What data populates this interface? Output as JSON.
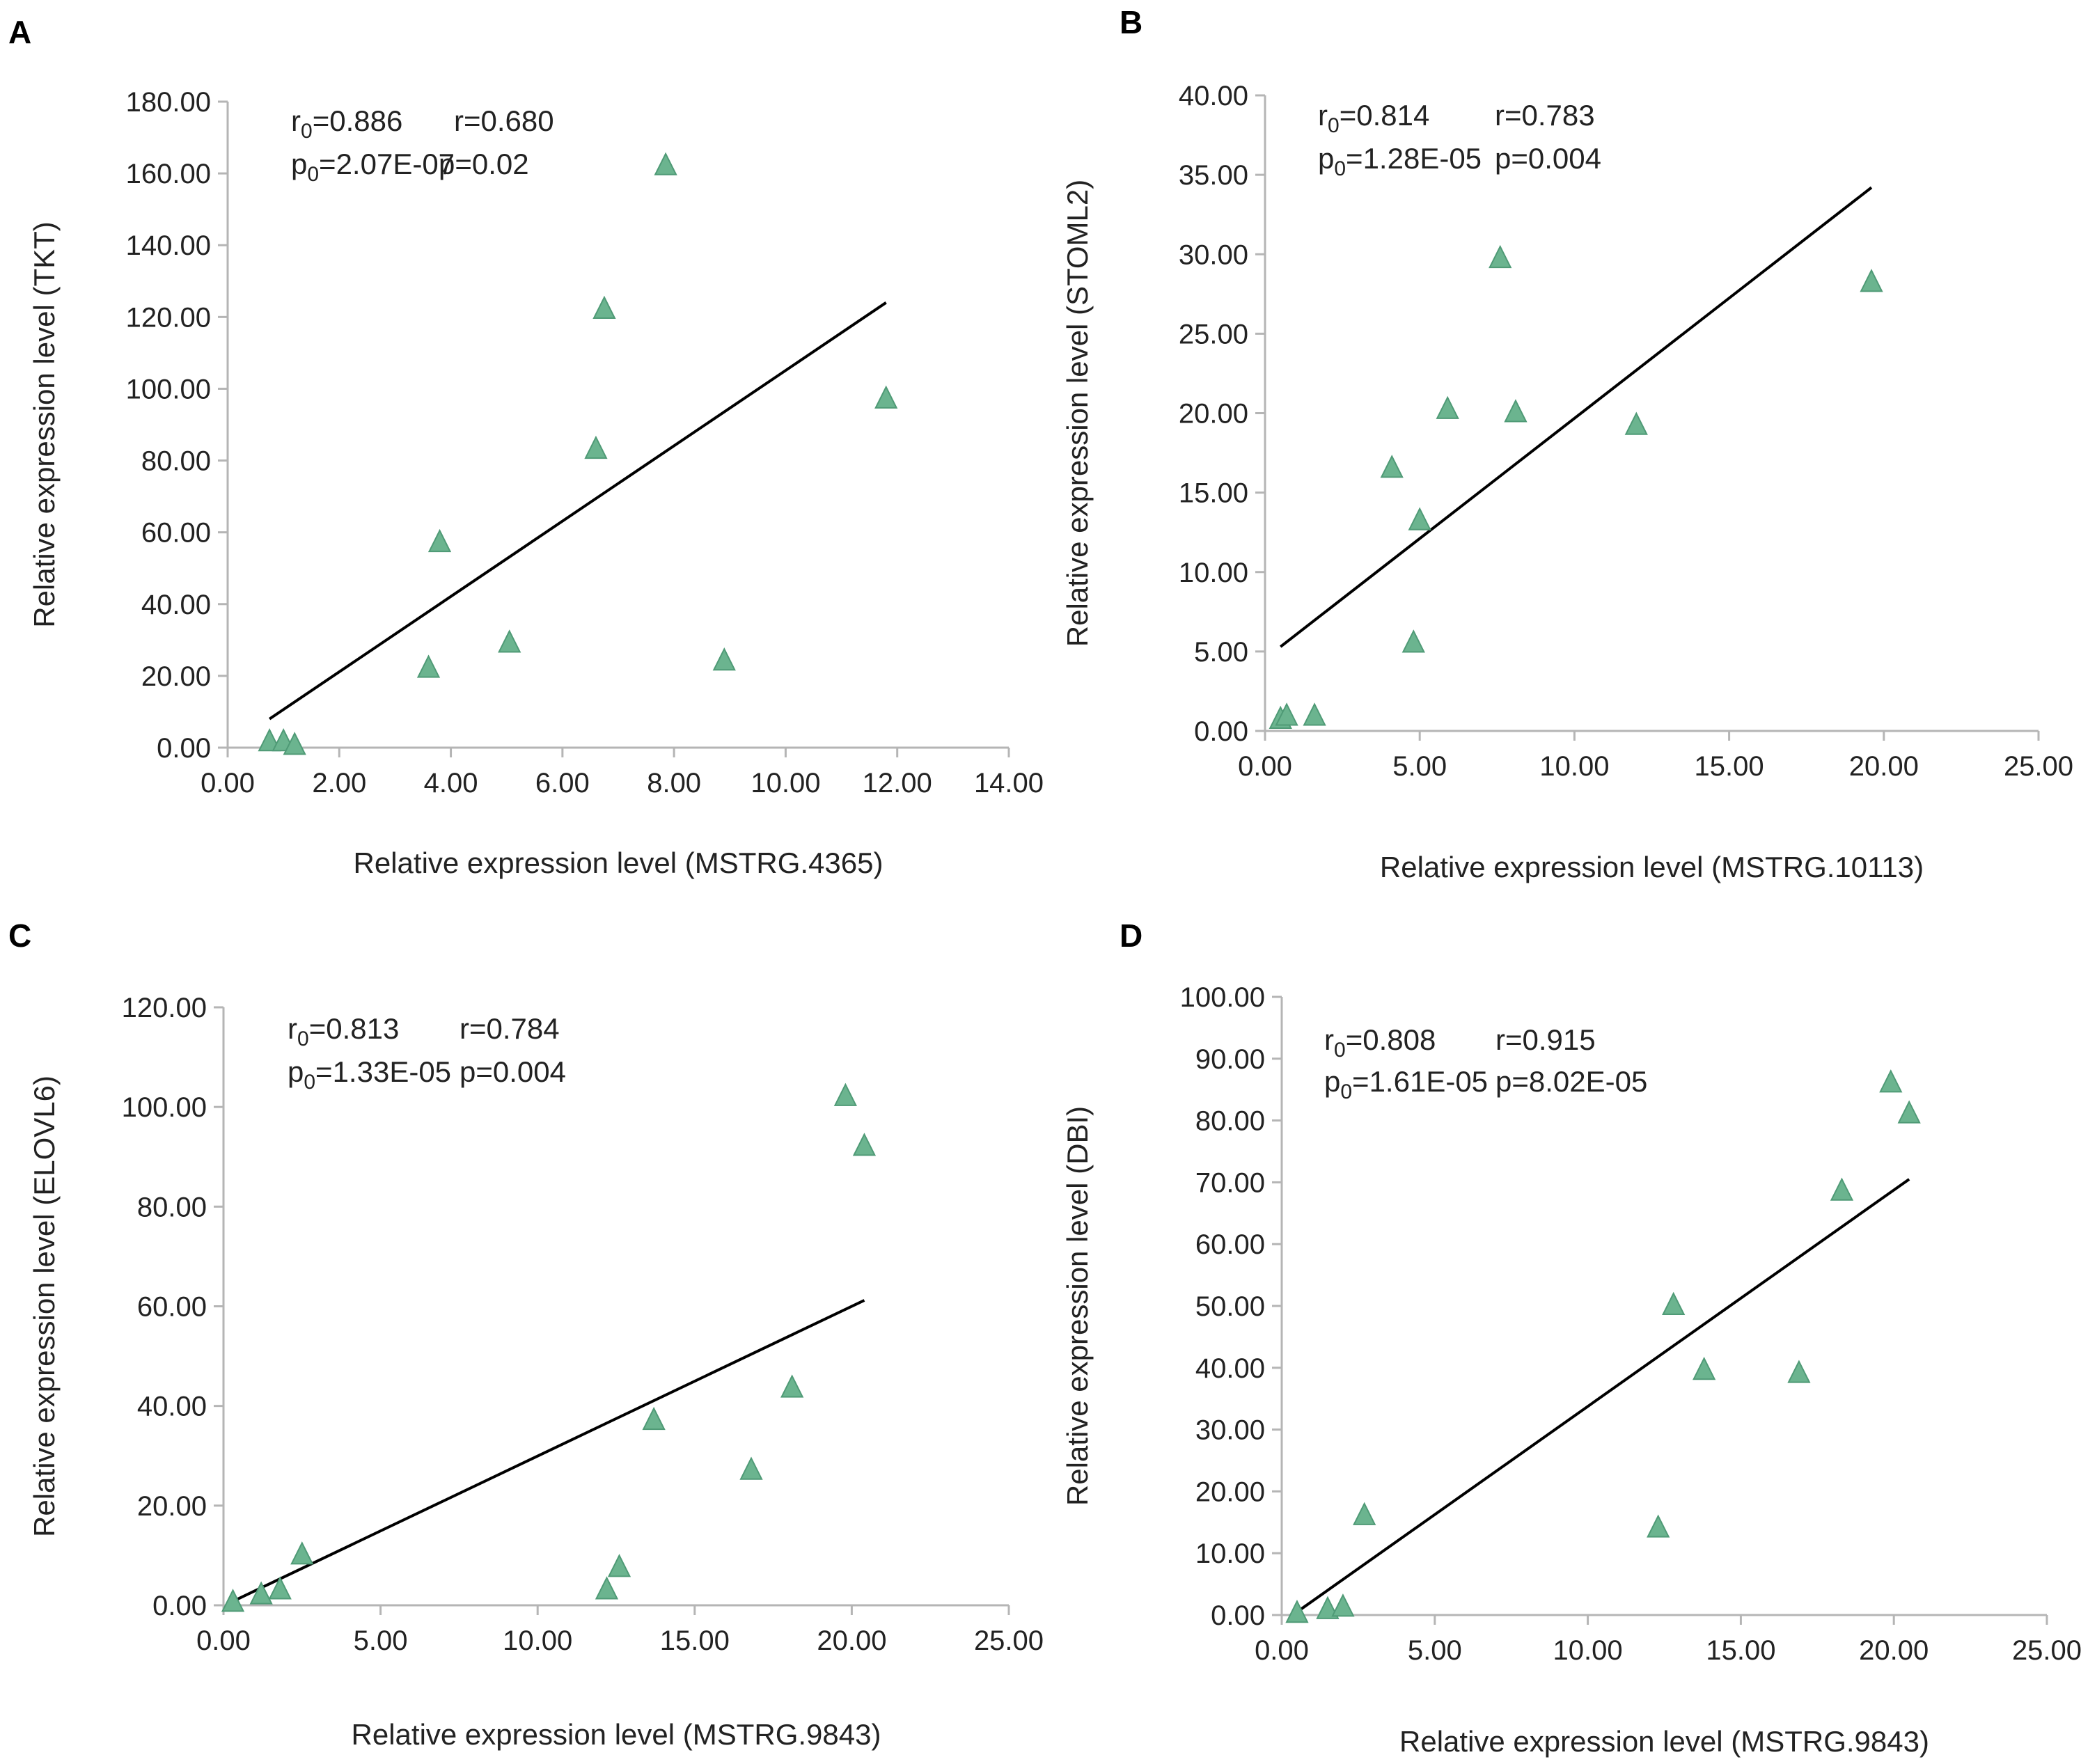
{
  "chart_data": [
    {
      "type": "scatter",
      "panel": "A",
      "xlabel": "Relative expression level (MSTRG.4365)",
      "ylabel": "Relative expression level (TKT)",
      "xlim": [
        0,
        14
      ],
      "ylim": [
        0,
        180
      ],
      "xticks": [
        "0.00",
        "2.00",
        "4.00",
        "6.00",
        "8.00",
        "10.00",
        "12.00",
        "14.00"
      ],
      "yticks": [
        "0.00",
        "20.00",
        "40.00",
        "60.00",
        "80.00",
        "100.00",
        "120.00",
        "140.00",
        "160.00",
        "180.00"
      ],
      "stats": {
        "r0": "r0=0.886",
        "r": "r=0.680",
        "p0": "p0=2.07E-07",
        "p": "p=0.02"
      },
      "points": [
        {
          "x": 0.75,
          "y": 1.5
        },
        {
          "x": 1.0,
          "y": 1.5
        },
        {
          "x": 1.2,
          "y": 0.5
        },
        {
          "x": 3.6,
          "y": 22
        },
        {
          "x": 3.8,
          "y": 57
        },
        {
          "x": 5.05,
          "y": 29
        },
        {
          "x": 6.6,
          "y": 83
        },
        {
          "x": 6.75,
          "y": 122
        },
        {
          "x": 7.85,
          "y": 162
        },
        {
          "x": 8.9,
          "y": 24
        },
        {
          "x": 11.8,
          "y": 97
        }
      ],
      "trendline": {
        "x": [
          0.75,
          11.8
        ],
        "y": [
          8,
          124
        ]
      }
    },
    {
      "type": "scatter",
      "panel": "B",
      "xlabel": "Relative expression level (MSTRG.10113)",
      "ylabel": "Relative expression level (STOML2)",
      "xlim": [
        0,
        25
      ],
      "ylim": [
        0,
        40
      ],
      "xticks": [
        "0.00",
        "5.00",
        "10.00",
        "15.00",
        "20.00",
        "25.00"
      ],
      "yticks": [
        "0.00",
        "5.00",
        "10.00",
        "15.00",
        "20.00",
        "25.00",
        "30.00",
        "35.00",
        "40.00"
      ],
      "stats": {
        "r0": "r0=0.814",
        "r": "r=0.783",
        "p0": "p0=1.28E-05",
        "p": "p=0.004"
      },
      "points": [
        {
          "x": 0.5,
          "y": 0.7
        },
        {
          "x": 0.7,
          "y": 0.9
        },
        {
          "x": 1.6,
          "y": 0.9
        },
        {
          "x": 4.1,
          "y": 16.5
        },
        {
          "x": 4.8,
          "y": 5.5
        },
        {
          "x": 5.0,
          "y": 13.2
        },
        {
          "x": 5.9,
          "y": 20.2
        },
        {
          "x": 7.6,
          "y": 29.7
        },
        {
          "x": 8.1,
          "y": 20.0
        },
        {
          "x": 12.0,
          "y": 19.2
        },
        {
          "x": 19.6,
          "y": 28.2
        }
      ],
      "trendline": {
        "x": [
          0.5,
          19.6
        ],
        "y": [
          5.3,
          34.2
        ]
      }
    },
    {
      "type": "scatter",
      "panel": "C",
      "xlabel": "Relative expression level (MSTRG.9843)",
      "ylabel": "Relative expression level (ELOVL6)",
      "xlim": [
        0,
        25
      ],
      "ylim": [
        0,
        120
      ],
      "xticks": [
        "0.00",
        "5.00",
        "10.00",
        "15.00",
        "20.00",
        "25.00"
      ],
      "yticks": [
        "0.00",
        "20.00",
        "40.00",
        "60.00",
        "80.00",
        "100.00",
        "120.00"
      ],
      "stats": {
        "r0": "r0=0.813",
        "r": "r=0.784",
        "p0": "p0=1.33E-05",
        "p": "p=0.004"
      },
      "points": [
        {
          "x": 0.3,
          "y": 0.5
        },
        {
          "x": 1.2,
          "y": 2
        },
        {
          "x": 1.8,
          "y": 3
        },
        {
          "x": 2.5,
          "y": 10
        },
        {
          "x": 12.2,
          "y": 3
        },
        {
          "x": 12.6,
          "y": 7.5
        },
        {
          "x": 13.7,
          "y": 37
        },
        {
          "x": 16.8,
          "y": 27
        },
        {
          "x": 18.1,
          "y": 43.5
        },
        {
          "x": 19.8,
          "y": 102
        },
        {
          "x": 20.4,
          "y": 92
        }
      ],
      "trendline": {
        "x": [
          0.3,
          20.4
        ],
        "y": [
          0.8,
          61.2
        ]
      }
    },
    {
      "type": "scatter",
      "panel": "D",
      "xlabel": "Relative expression level (MSTRG.9843)",
      "ylabel": "Relative expression level (DBI)",
      "xlim": [
        0,
        25
      ],
      "ylim": [
        0,
        100
      ],
      "xticks": [
        "0.00",
        "5.00",
        "10.00",
        "15.00",
        "20.00",
        "25.00"
      ],
      "yticks": [
        "0.00",
        "10.00",
        "20.00",
        "30.00",
        "40.00",
        "50.00",
        "60.00",
        "70.00",
        "80.00",
        "90.00",
        "100.00"
      ],
      "stats": {
        "r0": "r0=0.808",
        "r": "r=0.915",
        "p0": "p0=1.61E-05",
        "p": "p=8.02E-05"
      },
      "points": [
        {
          "x": 0.5,
          "y": 0.2
        },
        {
          "x": 1.5,
          "y": 0.8
        },
        {
          "x": 2.0,
          "y": 1.2
        },
        {
          "x": 2.7,
          "y": 16
        },
        {
          "x": 12.3,
          "y": 14
        },
        {
          "x": 12.8,
          "y": 50
        },
        {
          "x": 13.8,
          "y": 39.5
        },
        {
          "x": 16.9,
          "y": 39
        },
        {
          "x": 18.3,
          "y": 68.5
        },
        {
          "x": 19.9,
          "y": 86
        },
        {
          "x": 20.5,
          "y": 81
        }
      ],
      "trendline": {
        "x": [
          0.5,
          20.5
        ],
        "y": [
          0.5,
          70.5
        ]
      }
    }
  ],
  "colors": {
    "marker": "#6bb48f",
    "marker_stroke": "#4f9a76",
    "line": "#000000",
    "axis": "#b5b5b5"
  }
}
